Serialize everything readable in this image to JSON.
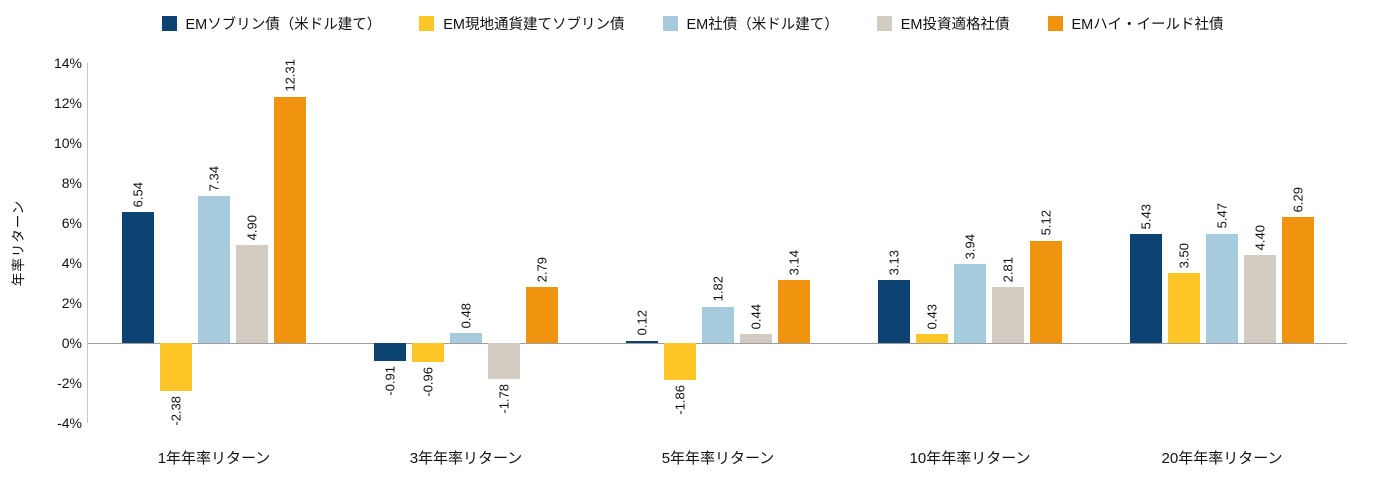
{
  "chart_data": {
    "type": "bar",
    "title": "",
    "ylabel": "年率リターン",
    "legend_position": "top",
    "grid": false,
    "categories": [
      "1年年率リターン",
      "3年年率リターン",
      "5年年率リターン",
      "10年年率リターン",
      "20年年率リターン"
    ],
    "series": [
      {
        "name": "EMソブリン債（米ドル建て）",
        "color": "#0d4372",
        "values": [
          6.54,
          -0.91,
          0.12,
          3.13,
          5.43
        ],
        "labels": [
          "6.54",
          "-0.91",
          "0.12",
          "3.13",
          "5.43"
        ]
      },
      {
        "name": "EM現地通貨建てソブリン債",
        "color": "#ffc627",
        "values": [
          -2.38,
          -0.96,
          -1.86,
          0.43,
          3.5
        ],
        "labels": [
          "-2.38",
          "-0.96",
          "-1.86",
          "0.43",
          "3.50"
        ]
      },
      {
        "name": "EM社債（米ドル建て）",
        "color": "#a5cbdc",
        "values": [
          7.34,
          0.48,
          1.82,
          3.94,
          5.47
        ],
        "labels": [
          "7.34",
          "0.48",
          "1.82",
          "3.94",
          "5.47"
        ]
      },
      {
        "name": "EM投資適格社債",
        "color": "#d2ccc3",
        "values": [
          4.9,
          -1.78,
          0.44,
          2.81,
          4.4
        ],
        "labels": [
          "4.90",
          "-1.78",
          "0.44",
          "2.81",
          "4.40"
        ]
      },
      {
        "name": "EMハイ・イールド社債",
        "color": "#f0930e",
        "values": [
          12.31,
          2.79,
          3.14,
          5.12,
          6.29
        ],
        "labels": [
          "12.31",
          "2.79",
          "3.14",
          "5.12",
          "6.29"
        ]
      }
    ],
    "y_axis": {
      "min": -4,
      "max": 14,
      "step": 2,
      "ticks": [
        "14%",
        "12%",
        "10%",
        "8%",
        "6%",
        "4%",
        "2%",
        "0%",
        "-2%",
        "-4%"
      ]
    },
    "axis_colors": {
      "axis_line": "#c7c7c7",
      "zero_line": "#9e9ea0"
    }
  }
}
